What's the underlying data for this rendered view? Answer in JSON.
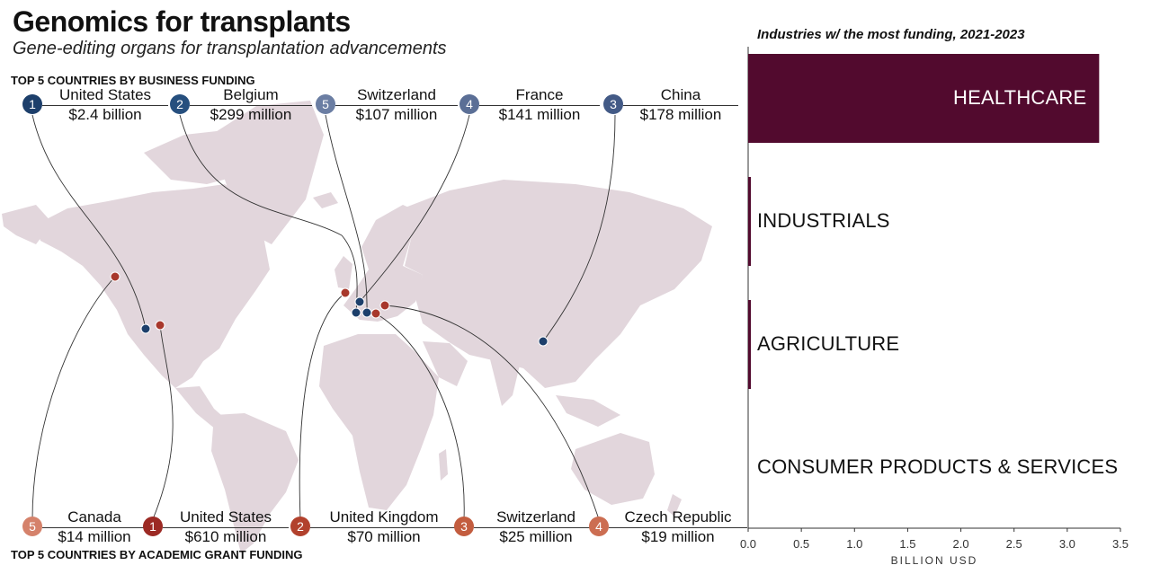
{
  "header": {
    "title": "Genomics for transplants",
    "subtitle": "Gene-editing organs for transplantation advancements"
  },
  "business": {
    "label": "TOP 5 COUNTRIES BY BUSINESS FUNDING",
    "color": "#1d3f6b",
    "items": [
      {
        "rank": "1",
        "country": "United States",
        "amount": "$2.4 billion",
        "shade": "#1d3f6b"
      },
      {
        "rank": "2",
        "country": "Belgium",
        "amount": "$299 million",
        "shade": "#264f7e"
      },
      {
        "rank": "5",
        "country": "Switzerland",
        "amount": "$107 million",
        "shade": "#6b7ea3"
      },
      {
        "rank": "4",
        "country": "France",
        "amount": "$141 million",
        "shade": "#5b6f96"
      },
      {
        "rank": "3",
        "country": "China",
        "amount": "$178 million",
        "shade": "#435a86"
      }
    ]
  },
  "academic": {
    "label": "TOP 5 COUNTRIES BY ACADEMIC GRANT FUNDING",
    "color": "#a8382c",
    "items": [
      {
        "rank": "5",
        "country": "Canada",
        "amount": "$14 million",
        "shade": "#d5826b"
      },
      {
        "rank": "1",
        "country": "United States",
        "amount": "$610 million",
        "shade": "#9c2a24"
      },
      {
        "rank": "2",
        "country": "United Kingdom",
        "amount": "$70 million",
        "shade": "#b2412d"
      },
      {
        "rank": "3",
        "country": "Switzerland",
        "amount": "$25 million",
        "shade": "#c35d3f"
      },
      {
        "rank": "4",
        "country": "Czech Republic",
        "amount": "$19 million",
        "shade": "#cc6e52"
      }
    ]
  },
  "map": {
    "land_color": "#e2d6dc"
  },
  "chart_data": {
    "type": "bar",
    "orientation": "horizontal",
    "title": "Industries w/ the most funding, 2021-2023",
    "categories": [
      "HEALTHCARE",
      "INDUSTRIALS",
      "AGRICULTURE",
      "CONSUMER PRODUCTS & SERVICES"
    ],
    "values": [
      3.3,
      0.02,
      0.015,
      0.0
    ],
    "xlabel": "BILLION USD",
    "xlim": [
      0,
      3.5
    ],
    "ticks": [
      "0.0",
      "0.5",
      "1.0",
      "1.5",
      "2.0",
      "2.5",
      "3.0",
      "3.5"
    ],
    "bar_color": "#520a2e",
    "grid": false
  }
}
